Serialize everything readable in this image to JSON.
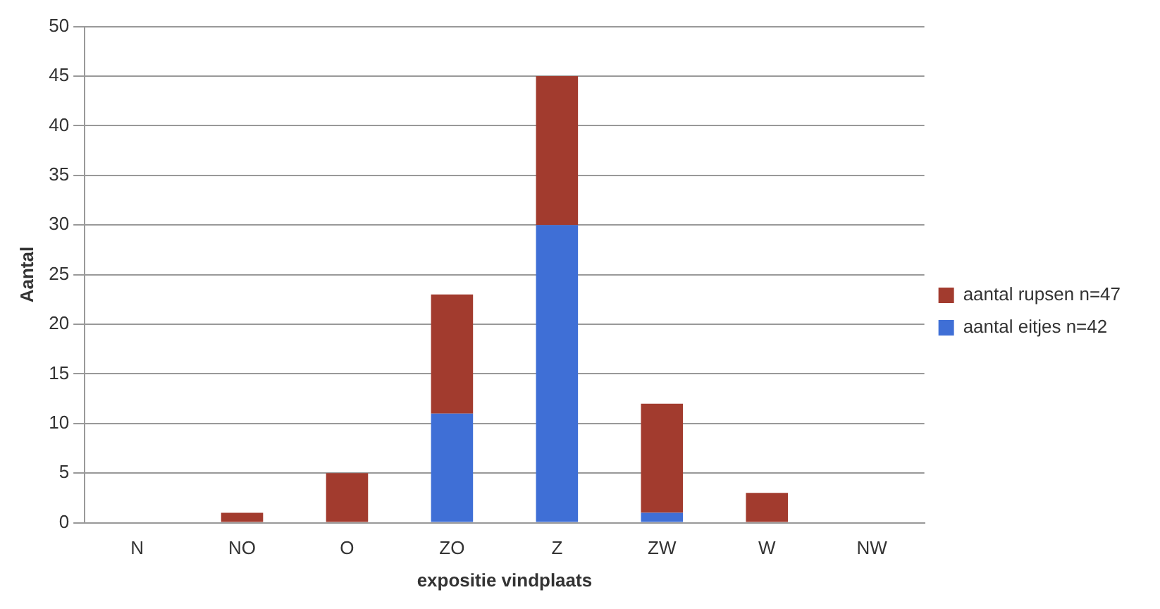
{
  "chart_data": {
    "type": "bar",
    "stacked": true,
    "xlabel": "expositie vindplaats",
    "ylabel": "Aantal",
    "categories": [
      "N",
      "NO",
      "O",
      "ZO",
      "Z",
      "ZW",
      "W",
      "NW"
    ],
    "series": [
      {
        "name": "aantal eitjes n=42",
        "color": "#3f6fd6",
        "values": [
          0,
          0,
          0,
          11,
          30,
          1,
          0,
          0
        ]
      },
      {
        "name": "aantal rupsen n=47",
        "color": "#a23b2e",
        "values": [
          0,
          1,
          5,
          12,
          15,
          11,
          3,
          0
        ]
      }
    ],
    "ylim": [
      0,
      50
    ],
    "yticks": [
      0,
      5,
      10,
      15,
      20,
      25,
      30,
      35,
      40,
      45,
      50
    ],
    "grid": "y",
    "legend": "right"
  }
}
